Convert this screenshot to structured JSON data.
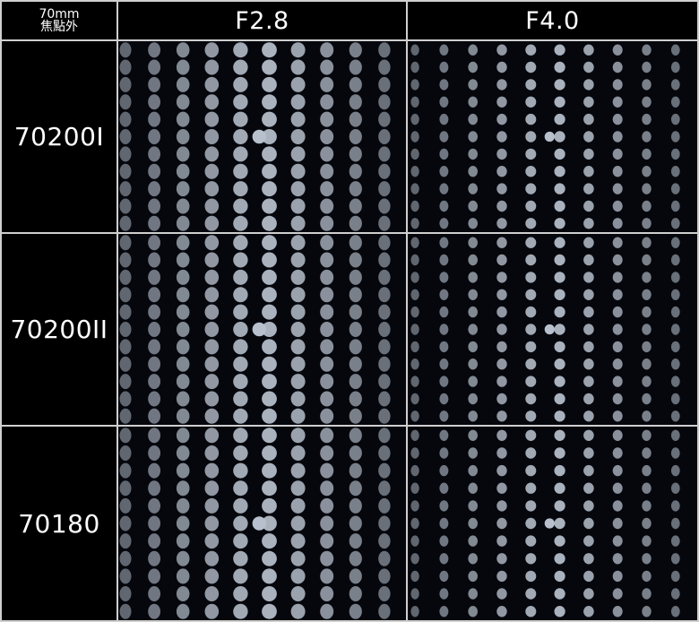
{
  "corner": {
    "line1": "70mm",
    "line2": "焦點外"
  },
  "columns": [
    "F2.8",
    "F4.0"
  ],
  "rows": [
    {
      "label": "70200I"
    },
    {
      "label": "70200II"
    },
    {
      "label": "70180"
    }
  ],
  "colors": {
    "background": "#000000",
    "divider": "#cfcfcf",
    "bokeh_dot": "#b7c0cc"
  }
}
